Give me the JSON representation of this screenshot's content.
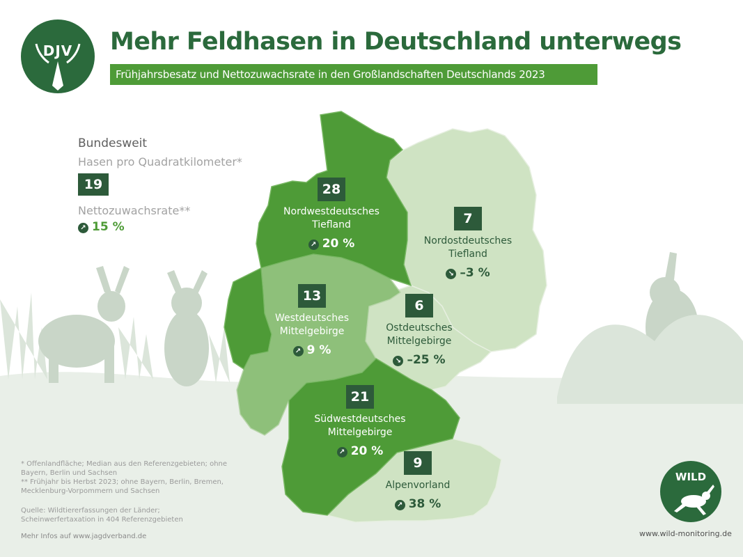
{
  "title": "Mehr Feldhasen in Deutschland unterwegs",
  "subtitle": "Frühjahrsbesatz und Nettozuwachsrate in den Großlandschaften Deutschlands 2023",
  "logo_djv": "DJV",
  "legend": {
    "heading": "Bundesweit",
    "density_label": "Hasen pro Quadratkilometer*",
    "density_value": "19",
    "rate_label": "Nettozuwachsrate**",
    "rate_value": "15 %",
    "rate_direction": "up"
  },
  "regions": [
    {
      "name": "Nordwestdeutsches\nTiefland",
      "density": "28",
      "rate": "20 %",
      "direction": "up"
    },
    {
      "name": "Nordostdeutsches\nTiefland",
      "density": "7",
      "rate": "–3 %",
      "direction": "down"
    },
    {
      "name": "Westdeutsches\nMittelgebirge",
      "density": "13",
      "rate": "9 %",
      "direction": "up"
    },
    {
      "name": "Ostdeutsches\nMittelgebirge",
      "density": "6",
      "rate": "–25 %",
      "direction": "down"
    },
    {
      "name": "Südwestdeutsches\nMittelgebirge",
      "density": "21",
      "rate": "20 %",
      "direction": "up"
    },
    {
      "name": "Alpenvorland",
      "density": "9",
      "rate": "38 %",
      "direction": "up"
    }
  ],
  "footnotes": {
    "star": "* Offenlandfläche; Median aus den Referenzgebieten; ohne Bayern, Berlin und Sachsen",
    "double_star": "** Frühjahr bis Herbst 2023; ohne Bayern, Berlin, Bremen, Mecklenburg-Vorpommern und Sachsen",
    "source": "Quelle: Wildtiererfassungen der Länder; Scheinwerfertaxation in 404 Referenzgebieten",
    "more": "Mehr Infos auf www.jagdverband.de"
  },
  "logo_wild": "WILD",
  "wild_url": "www.wild-monitoring.de",
  "colors": {
    "dark_green": "#2b6a3c",
    "medium_green": "#4e9b37",
    "light_green": "#8ec07a",
    "pale_green": "#cfe3c3",
    "box_green": "#2d5a3a",
    "hare_silhouette": "#c9d6c8"
  },
  "icons": {
    "up": "arrow-up-right-icon",
    "down": "arrow-down-right-icon"
  }
}
